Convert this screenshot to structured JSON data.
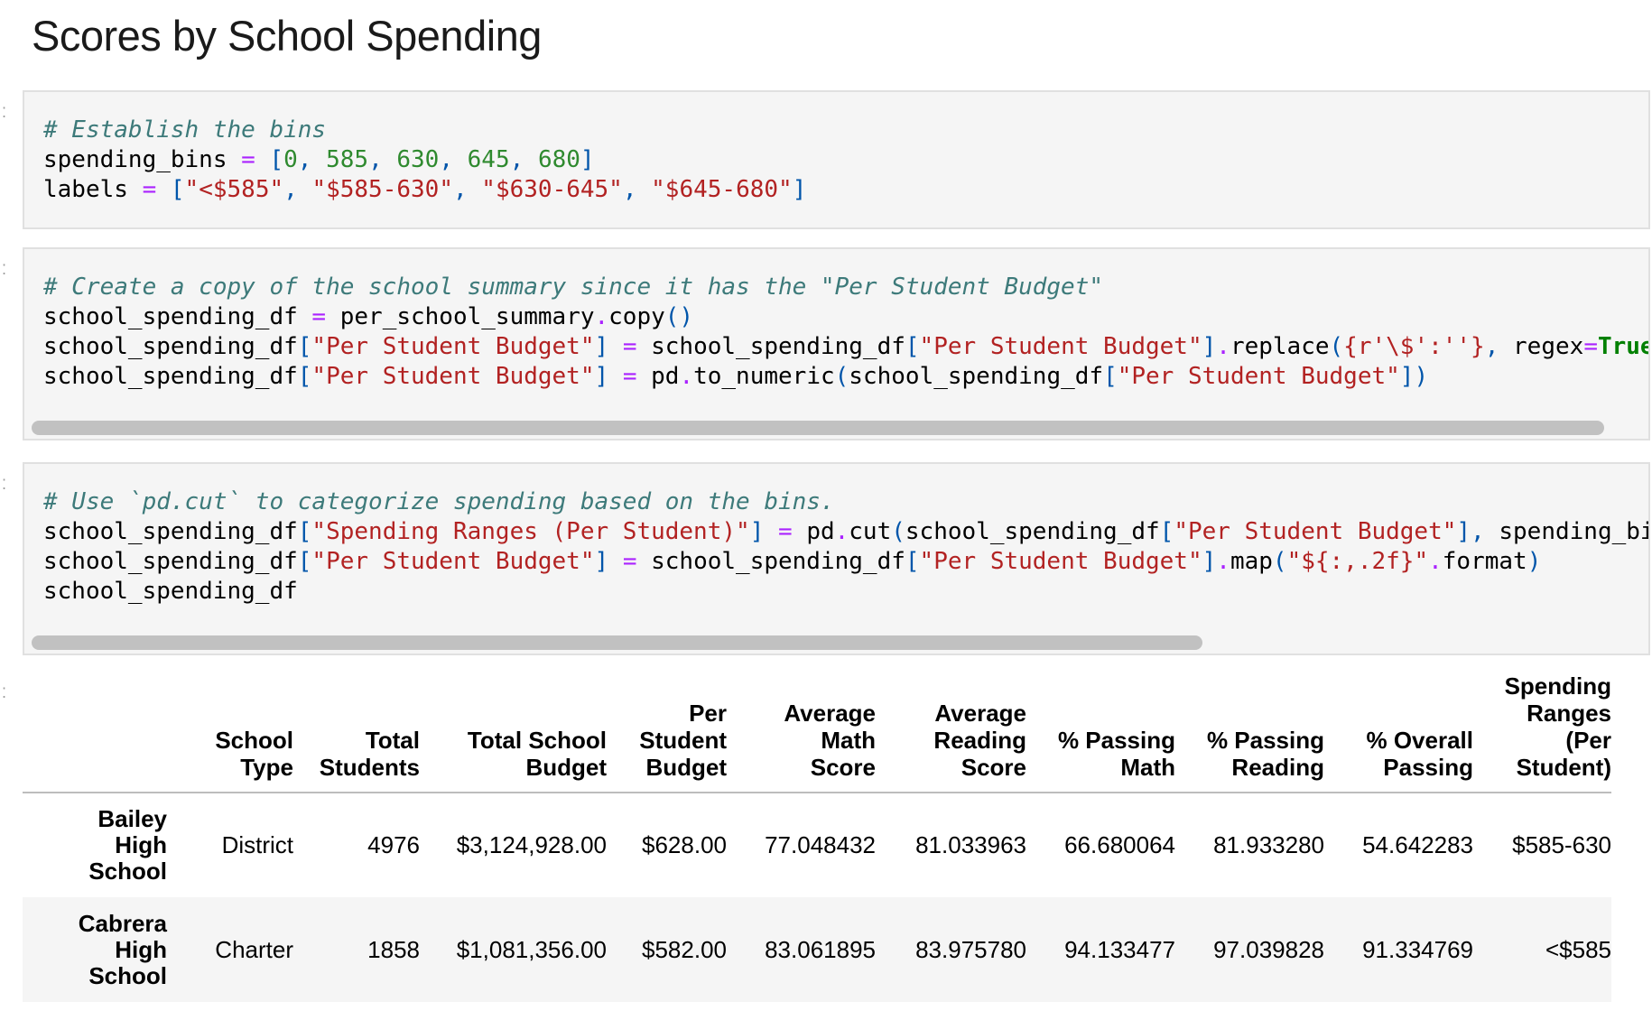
{
  "heading": "Scores by School Spending",
  "cells": {
    "bins": {
      "comment": "# Establish the bins",
      "var1": "spending_bins",
      "eq": "=",
      "bins": [
        "0",
        "585",
        "630",
        "645",
        "680"
      ],
      "var2": "labels",
      "labels": [
        "\"<$585\"",
        "\"$585-630\"",
        "\"$630-645\"",
        "\"$645-680\""
      ]
    },
    "copy": {
      "comment": "# Create a copy of the school summary since it has the \"Per Student Budget\"",
      "l1_var": "school_spending_df",
      "l1_src": "per_school_summary",
      "l1_fn": "copy",
      "col": "\"Per Student Budget\"",
      "l2_fn": "replace",
      "l2_arg": "{r'\\$':''}",
      "l2_kw": "regex",
      "l2_true": "True",
      "l3_mod": "pd",
      "l3_fn": "to_numeric"
    },
    "cut": {
      "comment": "# Use `pd.cut` to categorize spending based on the bins.",
      "var": "school_spending_df",
      "col_range": "\"Spending Ranges (Per Student)\"",
      "col_budget": "\"Per Student Budget\"",
      "mod": "pd",
      "fn_cut": "cut",
      "arg_bins": "spending_bins",
      "fn_map": "map",
      "fmt": "\"${:,.2f}\"",
      "fn_format": "format",
      "last": "school_spending_df"
    }
  },
  "table": {
    "columns": [
      [
        "School",
        "Type"
      ],
      [
        "Total",
        "Students"
      ],
      [
        "Total School",
        "Budget"
      ],
      [
        "Per",
        "Student",
        "Budget"
      ],
      [
        "Average",
        "Math",
        "Score"
      ],
      [
        "Average",
        "Reading",
        "Score"
      ],
      [
        "% Passing",
        "Math"
      ],
      [
        "% Passing",
        "Reading"
      ],
      [
        "% Overall",
        "Passing"
      ],
      [
        "Spending",
        "Ranges",
        "(Per",
        "Student)"
      ]
    ],
    "rows": [
      {
        "index": [
          "Bailey",
          "High",
          "School"
        ],
        "values": [
          "District",
          "4976",
          "$3,124,928.00",
          "$628.00",
          "77.048432",
          "81.033963",
          "66.680064",
          "81.933280",
          "54.642283",
          "$585-630"
        ]
      },
      {
        "index": [
          "Cabrera",
          "High",
          "School"
        ],
        "values": [
          "Charter",
          "1858",
          "$1,081,356.00",
          "$582.00",
          "83.061895",
          "83.975780",
          "94.133477",
          "97.039828",
          "91.334769",
          "<$585"
        ]
      }
    ]
  }
}
